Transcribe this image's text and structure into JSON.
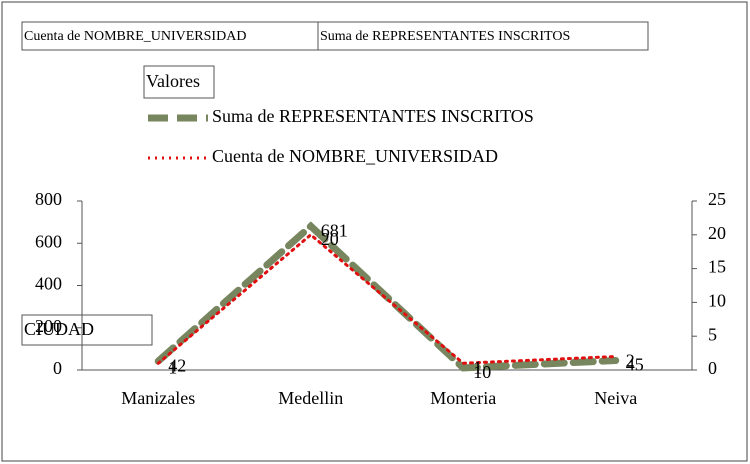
{
  "chart_data": {
    "type": "line",
    "field_buttons": [
      "Cuenta de NOMBRE_UNIVERSIDAD",
      "Suma de REPRESENTANTES INSCRITOS"
    ],
    "legend_title": "Valores",
    "x_field_button": "CIUDAD",
    "categories": [
      "Manizales",
      "Medellin",
      "Monteria",
      "Neiva"
    ],
    "series": [
      {
        "name": "Suma de REPRESENTANTES INSCRITOS",
        "color": "#77865e",
        "values": [
          42,
          681,
          10,
          45
        ]
      },
      {
        "name": "Cuenta de NOMBRE_UNIVERSIDAD",
        "color": "#e01010",
        "values": [
          1,
          20,
          1,
          2
        ],
        "axis": "y2"
      }
    ],
    "ylim": [
      0,
      800
    ],
    "yticks": [
      0,
      200,
      400,
      600,
      800
    ],
    "y2lim": [
      0,
      25
    ],
    "y2ticks": [
      0,
      5,
      10,
      15,
      20,
      25
    ],
    "grid": false
  }
}
